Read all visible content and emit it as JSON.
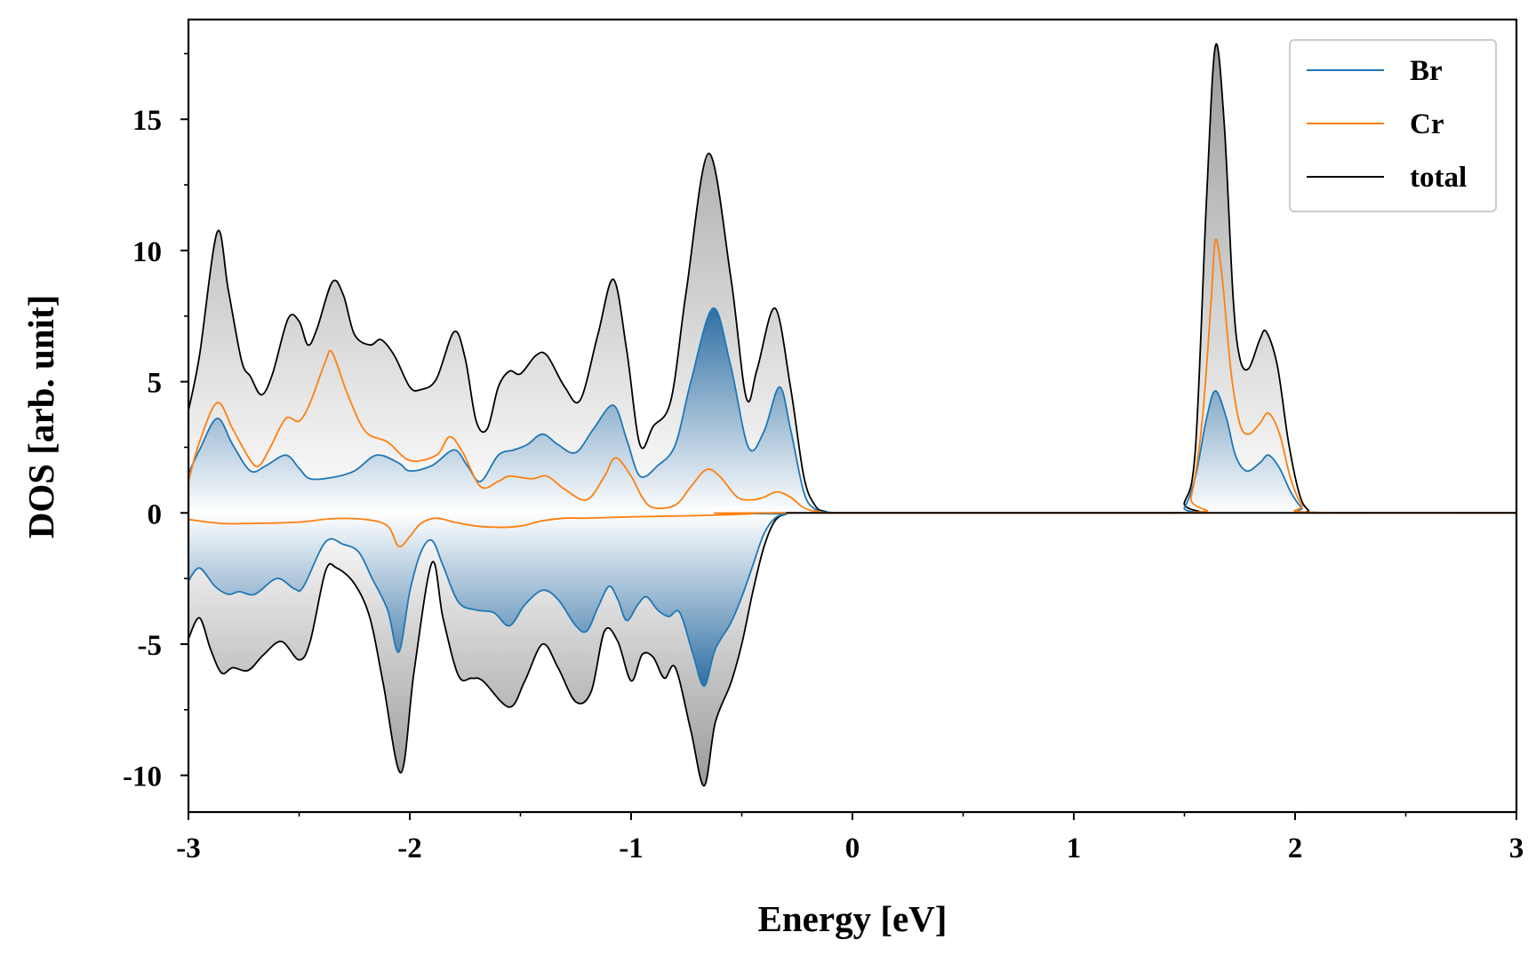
{
  "chart_data": {
    "type": "area",
    "title": "",
    "xlabel": "Energy [eV]",
    "ylabel": "DOS [arb. unit]",
    "xlim": [
      -3,
      3
    ],
    "ylim": [
      -11.4,
      18.8
    ],
    "x_ticks": [
      -3,
      -2,
      -1,
      0,
      1,
      2,
      3
    ],
    "x_tick_labels": [
      "-3",
      "-2",
      "-1",
      "0",
      "1",
      "2",
      "3"
    ],
    "y_ticks": [
      -10,
      -5,
      0,
      5,
      10,
      15
    ],
    "y_tick_labels": [
      "-10",
      "-5",
      "0",
      "5",
      "10",
      "15"
    ],
    "grid": false,
    "legend_position": "top-right",
    "colors": {
      "Br": "#1f77b4",
      "Cr": "#ff7f0e",
      "total": "#000000",
      "total_fill": "#999999",
      "br_fill": "#2f6fa3"
    },
    "series": [
      {
        "name": "Br",
        "up": [
          [
            -3.0,
            1.5
          ],
          [
            -2.95,
            2.4
          ],
          [
            -2.87,
            3.6
          ],
          [
            -2.8,
            2.6
          ],
          [
            -2.72,
            1.6
          ],
          [
            -2.65,
            1.8
          ],
          [
            -2.56,
            2.2
          ],
          [
            -2.5,
            1.7
          ],
          [
            -2.45,
            1.3
          ],
          [
            -2.35,
            1.35
          ],
          [
            -2.25,
            1.6
          ],
          [
            -2.15,
            2.2
          ],
          [
            -2.05,
            1.9
          ],
          [
            -2.0,
            1.6
          ],
          [
            -1.9,
            1.8
          ],
          [
            -1.8,
            2.4
          ],
          [
            -1.74,
            1.8
          ],
          [
            -1.68,
            1.2
          ],
          [
            -1.6,
            2.2
          ],
          [
            -1.53,
            2.4
          ],
          [
            -1.47,
            2.6
          ],
          [
            -1.4,
            3.0
          ],
          [
            -1.33,
            2.6
          ],
          [
            -1.25,
            2.3
          ],
          [
            -1.17,
            3.2
          ],
          [
            -1.08,
            4.1
          ],
          [
            -1.02,
            2.8
          ],
          [
            -0.96,
            1.4
          ],
          [
            -0.88,
            1.8
          ],
          [
            -0.8,
            2.6
          ],
          [
            -0.73,
            5.0
          ],
          [
            -0.63,
            7.8
          ],
          [
            -0.55,
            5.6
          ],
          [
            -0.47,
            2.5
          ],
          [
            -0.4,
            3.1
          ],
          [
            -0.33,
            4.8
          ],
          [
            -0.28,
            3.2
          ],
          [
            -0.22,
            0.8
          ],
          [
            -0.17,
            0.15
          ],
          [
            -0.1,
            0.02
          ],
          [
            0.0,
            0.0
          ],
          [
            1.45,
            0.0
          ],
          [
            1.5,
            0.2
          ],
          [
            1.55,
            1.4
          ],
          [
            1.6,
            3.6
          ],
          [
            1.64,
            4.65
          ],
          [
            1.69,
            3.6
          ],
          [
            1.73,
            2.2
          ],
          [
            1.78,
            1.6
          ],
          [
            1.84,
            1.9
          ],
          [
            1.88,
            2.2
          ],
          [
            1.93,
            1.7
          ],
          [
            1.98,
            0.8
          ],
          [
            2.03,
            0.2
          ],
          [
            2.08,
            0.02
          ],
          [
            3.0,
            0.0
          ]
        ],
        "down": [
          [
            -3.0,
            -2.6
          ],
          [
            -2.95,
            -2.1
          ],
          [
            -2.88,
            -2.8
          ],
          [
            -2.82,
            -3.1
          ],
          [
            -2.77,
            -3.0
          ],
          [
            -2.7,
            -3.1
          ],
          [
            -2.6,
            -2.5
          ],
          [
            -2.52,
            -2.9
          ],
          [
            -2.48,
            -2.8
          ],
          [
            -2.38,
            -1.1
          ],
          [
            -2.3,
            -1.2
          ],
          [
            -2.23,
            -1.5
          ],
          [
            -2.17,
            -2.5
          ],
          [
            -2.1,
            -3.7
          ],
          [
            -2.05,
            -5.3
          ],
          [
            -2.0,
            -3.0
          ],
          [
            -1.95,
            -1.5
          ],
          [
            -1.9,
            -1.05
          ],
          [
            -1.85,
            -2.0
          ],
          [
            -1.78,
            -3.4
          ],
          [
            -1.7,
            -3.7
          ],
          [
            -1.62,
            -3.8
          ],
          [
            -1.55,
            -4.3
          ],
          [
            -1.48,
            -3.5
          ],
          [
            -1.4,
            -2.95
          ],
          [
            -1.33,
            -3.3
          ],
          [
            -1.25,
            -4.3
          ],
          [
            -1.2,
            -4.5
          ],
          [
            -1.15,
            -3.6
          ],
          [
            -1.1,
            -2.8
          ],
          [
            -1.06,
            -3.3
          ],
          [
            -1.02,
            -4.1
          ],
          [
            -0.97,
            -3.5
          ],
          [
            -0.93,
            -3.2
          ],
          [
            -0.88,
            -3.7
          ],
          [
            -0.83,
            -3.95
          ],
          [
            -0.78,
            -3.8
          ],
          [
            -0.72,
            -5.4
          ],
          [
            -0.67,
            -6.6
          ],
          [
            -0.62,
            -5.2
          ],
          [
            -0.55,
            -4.2
          ],
          [
            -0.5,
            -3.2
          ],
          [
            -0.45,
            -2.0
          ],
          [
            -0.4,
            -0.8
          ],
          [
            -0.35,
            -0.2
          ],
          [
            -0.3,
            -0.05
          ],
          [
            -0.25,
            0.0
          ],
          [
            3.0,
            0.0
          ]
        ]
      },
      {
        "name": "Cr",
        "up": [
          [
            -3.0,
            1.2
          ],
          [
            -2.95,
            2.7
          ],
          [
            -2.87,
            4.2
          ],
          [
            -2.8,
            3.2
          ],
          [
            -2.72,
            2.0
          ],
          [
            -2.68,
            1.8
          ],
          [
            -2.63,
            2.5
          ],
          [
            -2.56,
            3.6
          ],
          [
            -2.5,
            3.5
          ],
          [
            -2.45,
            4.2
          ],
          [
            -2.38,
            5.8
          ],
          [
            -2.35,
            6.1
          ],
          [
            -2.28,
            4.5
          ],
          [
            -2.2,
            3.1
          ],
          [
            -2.1,
            2.7
          ],
          [
            -2.0,
            2.0
          ],
          [
            -1.88,
            2.2
          ],
          [
            -1.82,
            2.9
          ],
          [
            -1.76,
            2.3
          ],
          [
            -1.68,
            1.0
          ],
          [
            -1.6,
            1.2
          ],
          [
            -1.55,
            1.4
          ],
          [
            -1.45,
            1.3
          ],
          [
            -1.38,
            1.4
          ],
          [
            -1.3,
            0.9
          ],
          [
            -1.2,
            0.5
          ],
          [
            -1.12,
            1.4
          ],
          [
            -1.07,
            2.1
          ],
          [
            -1.0,
            1.4
          ],
          [
            -0.95,
            0.6
          ],
          [
            -0.9,
            0.2
          ],
          [
            -0.8,
            0.3
          ],
          [
            -0.73,
            1.0
          ],
          [
            -0.66,
            1.65
          ],
          [
            -0.6,
            1.4
          ],
          [
            -0.52,
            0.6
          ],
          [
            -0.45,
            0.5
          ],
          [
            -0.4,
            0.6
          ],
          [
            -0.34,
            0.8
          ],
          [
            -0.28,
            0.6
          ],
          [
            -0.22,
            0.2
          ],
          [
            -0.15,
            0.05
          ],
          [
            0.0,
            0.0
          ],
          [
            1.48,
            0.0
          ],
          [
            1.53,
            0.6
          ],
          [
            1.58,
            3.5
          ],
          [
            1.62,
            8.0
          ],
          [
            1.64,
            10.4
          ],
          [
            1.67,
            9.0
          ],
          [
            1.71,
            5.4
          ],
          [
            1.75,
            3.4
          ],
          [
            1.79,
            3.0
          ],
          [
            1.84,
            3.4
          ],
          [
            1.88,
            3.8
          ],
          [
            1.93,
            3.0
          ],
          [
            1.98,
            1.3
          ],
          [
            2.03,
            0.3
          ],
          [
            2.08,
            0.02
          ],
          [
            3.0,
            0.0
          ]
        ],
        "down": [
          [
            -3.0,
            -0.25
          ],
          [
            -2.85,
            -0.4
          ],
          [
            -2.7,
            -0.4
          ],
          [
            -2.5,
            -0.35
          ],
          [
            -2.35,
            -0.22
          ],
          [
            -2.2,
            -0.25
          ],
          [
            -2.1,
            -0.5
          ],
          [
            -2.05,
            -1.28
          ],
          [
            -2.0,
            -0.9
          ],
          [
            -1.95,
            -0.4
          ],
          [
            -1.88,
            -0.2
          ],
          [
            -1.8,
            -0.35
          ],
          [
            -1.7,
            -0.5
          ],
          [
            -1.6,
            -0.55
          ],
          [
            -1.5,
            -0.5
          ],
          [
            -1.4,
            -0.3
          ],
          [
            -1.3,
            -0.2
          ],
          [
            -1.2,
            -0.2
          ],
          [
            -1.0,
            -0.15
          ],
          [
            -0.8,
            -0.12
          ],
          [
            -0.6,
            -0.08
          ],
          [
            -0.45,
            -0.03
          ],
          [
            -0.35,
            0.0
          ],
          [
            3.0,
            0.0
          ]
        ]
      },
      {
        "name": "total",
        "up": [
          [
            -3.0,
            3.9
          ],
          [
            -2.95,
            6.0
          ],
          [
            -2.87,
            10.7
          ],
          [
            -2.82,
            8.5
          ],
          [
            -2.76,
            5.8
          ],
          [
            -2.72,
            5.2
          ],
          [
            -2.67,
            4.5
          ],
          [
            -2.62,
            5.3
          ],
          [
            -2.55,
            7.4
          ],
          [
            -2.5,
            7.3
          ],
          [
            -2.46,
            6.4
          ],
          [
            -2.42,
            7.0
          ],
          [
            -2.35,
            8.8
          ],
          [
            -2.3,
            8.3
          ],
          [
            -2.25,
            6.8
          ],
          [
            -2.18,
            6.4
          ],
          [
            -2.13,
            6.6
          ],
          [
            -2.07,
            6.0
          ],
          [
            -2.0,
            4.8
          ],
          [
            -1.95,
            4.7
          ],
          [
            -1.88,
            5.1
          ],
          [
            -1.8,
            6.9
          ],
          [
            -1.75,
            5.9
          ],
          [
            -1.7,
            3.5
          ],
          [
            -1.65,
            3.2
          ],
          [
            -1.6,
            4.8
          ],
          [
            -1.55,
            5.4
          ],
          [
            -1.5,
            5.3
          ],
          [
            -1.43,
            6.0
          ],
          [
            -1.38,
            6.0
          ],
          [
            -1.3,
            4.8
          ],
          [
            -1.23,
            4.3
          ],
          [
            -1.15,
            6.8
          ],
          [
            -1.08,
            8.9
          ],
          [
            -1.02,
            6.2
          ],
          [
            -0.96,
            2.6
          ],
          [
            -0.9,
            3.3
          ],
          [
            -0.82,
            4.3
          ],
          [
            -0.75,
            8.5
          ],
          [
            -0.65,
            13.7
          ],
          [
            -0.55,
            9.0
          ],
          [
            -0.48,
            4.4
          ],
          [
            -0.43,
            5.5
          ],
          [
            -0.35,
            7.8
          ],
          [
            -0.28,
            4.8
          ],
          [
            -0.22,
            1.4
          ],
          [
            -0.17,
            0.3
          ],
          [
            -0.12,
            0.05
          ],
          [
            0.0,
            0.0
          ],
          [
            1.45,
            0.0
          ],
          [
            1.5,
            0.4
          ],
          [
            1.55,
            2.5
          ],
          [
            1.6,
            12.0
          ],
          [
            1.64,
            17.8
          ],
          [
            1.68,
            14.8
          ],
          [
            1.72,
            8.2
          ],
          [
            1.75,
            5.9
          ],
          [
            1.79,
            5.5
          ],
          [
            1.84,
            6.6
          ],
          [
            1.87,
            6.9
          ],
          [
            1.92,
            5.6
          ],
          [
            1.97,
            2.7
          ],
          [
            2.02,
            0.7
          ],
          [
            2.06,
            0.1
          ],
          [
            2.1,
            0.0
          ],
          [
            3.0,
            0.0
          ]
        ],
        "down": [
          [
            -3.0,
            -4.8
          ],
          [
            -2.95,
            -4.0
          ],
          [
            -2.9,
            -5.2
          ],
          [
            -2.85,
            -6.1
          ],
          [
            -2.8,
            -5.9
          ],
          [
            -2.73,
            -6.0
          ],
          [
            -2.66,
            -5.4
          ],
          [
            -2.58,
            -4.9
          ],
          [
            -2.5,
            -5.6
          ],
          [
            -2.45,
            -4.9
          ],
          [
            -2.38,
            -2.2
          ],
          [
            -2.33,
            -2.1
          ],
          [
            -2.25,
            -2.7
          ],
          [
            -2.18,
            -4.0
          ],
          [
            -2.12,
            -6.5
          ],
          [
            -2.04,
            -9.9
          ],
          [
            -1.98,
            -6.0
          ],
          [
            -1.9,
            -1.9
          ],
          [
            -1.85,
            -4.0
          ],
          [
            -1.78,
            -6.2
          ],
          [
            -1.72,
            -6.3
          ],
          [
            -1.67,
            -6.4
          ],
          [
            -1.55,
            -7.4
          ],
          [
            -1.48,
            -6.4
          ],
          [
            -1.4,
            -5.0
          ],
          [
            -1.33,
            -5.9
          ],
          [
            -1.25,
            -7.2
          ],
          [
            -1.18,
            -6.8
          ],
          [
            -1.12,
            -4.5
          ],
          [
            -1.06,
            -4.9
          ],
          [
            -1.0,
            -6.4
          ],
          [
            -0.95,
            -5.4
          ],
          [
            -0.9,
            -5.5
          ],
          [
            -0.85,
            -6.3
          ],
          [
            -0.8,
            -5.9
          ],
          [
            -0.73,
            -8.3
          ],
          [
            -0.67,
            -10.4
          ],
          [
            -0.62,
            -8.0
          ],
          [
            -0.55,
            -6.5
          ],
          [
            -0.5,
            -5.0
          ],
          [
            -0.45,
            -3.0
          ],
          [
            -0.4,
            -1.3
          ],
          [
            -0.35,
            -0.3
          ],
          [
            -0.3,
            -0.05
          ],
          [
            -0.25,
            0.0
          ],
          [
            3.0,
            0.0
          ]
        ]
      }
    ]
  }
}
